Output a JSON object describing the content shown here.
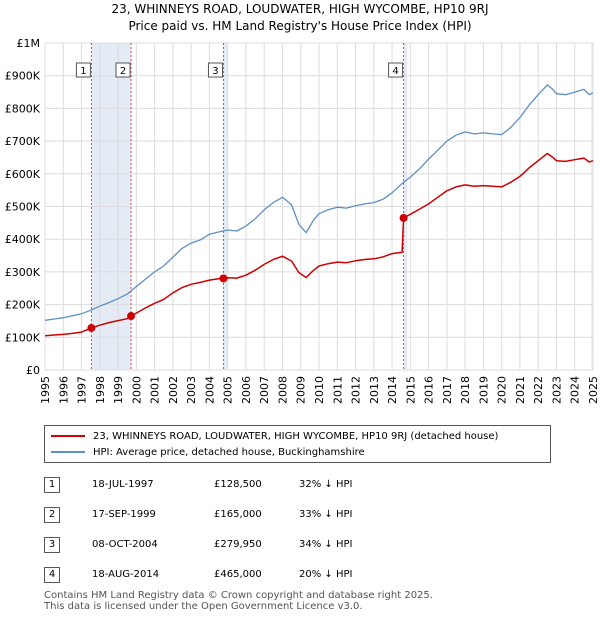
{
  "title_line1": "23, WHINNEYS ROAD, LOUDWATER, HIGH WYCOMBE, HP10 9RJ",
  "title_line2": "Price paid vs. HM Land Registry's House Price Index (HPI)",
  "colors": {
    "property": "#cc0000",
    "hpi": "#5b8fc7",
    "marker_line": "#cc0000",
    "shade": "#dde6f3"
  },
  "legend": {
    "property_label": "23, WHINNEYS ROAD, LOUDWATER, HIGH WYCOMBE, HP10 9RJ (detached house)",
    "hpi_label": "HPI: Average price, detached house, Buckinghamshire"
  },
  "sales": [
    {
      "num": "1",
      "date": "18-JUL-1997",
      "price": "£128,500",
      "hpi_diff": "32% ↓ HPI",
      "x": 1997.54,
      "y": 128500
    },
    {
      "num": "2",
      "date": "17-SEP-1999",
      "price": "£165,000",
      "hpi_diff": "33% ↓ HPI",
      "x": 1999.71,
      "y": 165000
    },
    {
      "num": "3",
      "date": "08-OCT-2004",
      "price": "£279,950",
      "hpi_diff": "34% ↓ HPI",
      "x": 2004.77,
      "y": 279950
    },
    {
      "num": "4",
      "date": "18-AUG-2014",
      "price": "£465,000",
      "hpi_diff": "20% ↓ HPI",
      "x": 2014.63,
      "y": 465000
    }
  ],
  "footer": {
    "line1": "Contains HM Land Registry data © Crown copyright and database right 2025.",
    "line2": "This data is licensed under the Open Government Licence v3.0."
  },
  "chart_data": {
    "type": "line",
    "title": "23, WHINNEYS ROAD, LOUDWATER, HIGH WYCOMBE, HP10 9RJ",
    "subtitle": "Price paid vs. HM Land Registry's House Price Index (HPI)",
    "xlim": [
      1995,
      2025
    ],
    "ylim": [
      0,
      1000000
    ],
    "grid": true,
    "legend_position": "bottom",
    "x_ticks": [
      "1995",
      "1996",
      "1997",
      "1998",
      "1999",
      "2000",
      "2001",
      "2002",
      "2003",
      "2004",
      "2005",
      "2006",
      "2007",
      "2008",
      "2009",
      "2010",
      "2011",
      "2012",
      "2013",
      "2014",
      "2015",
      "2016",
      "2017",
      "2018",
      "2019",
      "2020",
      "2021",
      "2022",
      "2023",
      "2024",
      "2025"
    ],
    "y_ticks": [
      {
        "value": 0,
        "label": "£0"
      },
      {
        "value": 100000,
        "label": "£100K"
      },
      {
        "value": 200000,
        "label": "£200K"
      },
      {
        "value": 300000,
        "label": "£300K"
      },
      {
        "value": 400000,
        "label": "£400K"
      },
      {
        "value": 500000,
        "label": "£500K"
      },
      {
        "value": 600000,
        "label": "£600K"
      },
      {
        "value": 700000,
        "label": "£700K"
      },
      {
        "value": 800000,
        "label": "£800K"
      },
      {
        "value": 900000,
        "label": "£900K"
      },
      {
        "value": 1000000,
        "label": "£1M"
      }
    ],
    "series": [
      {
        "name": "HPI: Average price, detached house, Buckinghamshire",
        "x": [
          1995.0,
          1995.5,
          1996.0,
          1996.5,
          1997.0,
          1997.5,
          1998.0,
          1998.5,
          1999.0,
          1999.5,
          2000.0,
          2000.5,
          2001.0,
          2001.5,
          2002.0,
          2002.5,
          2003.0,
          2003.5,
          2004.0,
          2004.5,
          2005.0,
          2005.5,
          2006.0,
          2006.5,
          2007.0,
          2007.5,
          2008.0,
          2008.5,
          2008.9,
          2009.3,
          2009.7,
          2010.0,
          2010.5,
          2011.0,
          2011.5,
          2012.0,
          2012.5,
          2013.0,
          2013.5,
          2014.0,
          2014.5,
          2015.0,
          2015.5,
          2016.0,
          2016.5,
          2017.0,
          2017.5,
          2018.0,
          2018.5,
          2019.0,
          2019.5,
          2020.0,
          2020.5,
          2021.0,
          2021.5,
          2022.0,
          2022.5,
          2022.8,
          2023.0,
          2023.5,
          2024.0,
          2024.5,
          2024.8,
          2025.0
        ],
        "y": [
          152000,
          156000,
          160000,
          166000,
          172000,
          183000,
          195000,
          206000,
          218000,
          232000,
          255000,
          278000,
          300000,
          318000,
          345000,
          372000,
          388000,
          398000,
          415000,
          422000,
          428000,
          425000,
          440000,
          462000,
          490000,
          512000,
          528000,
          505000,
          445000,
          420000,
          458000,
          478000,
          490000,
          498000,
          495000,
          502000,
          508000,
          512000,
          522000,
          542000,
          568000,
          590000,
          615000,
          645000,
          672000,
          700000,
          718000,
          728000,
          722000,
          725000,
          722000,
          720000,
          742000,
          772000,
          810000,
          842000,
          872000,
          858000,
          845000,
          842000,
          850000,
          858000,
          842000,
          848000
        ]
      },
      {
        "name": "23, WHINNEYS ROAD, LOUDWATER, HIGH WYCOMBE, HP10 9RJ (detached house)",
        "x": [
          1995.0,
          1995.5,
          1996.0,
          1996.5,
          1997.0,
          1997.54,
          1998.0,
          1998.5,
          1999.0,
          1999.5,
          1999.71,
          2000.0,
          2000.5,
          2001.0,
          2001.5,
          2002.0,
          2002.5,
          2003.0,
          2003.5,
          2004.0,
          2004.5,
          2004.77,
          2005.0,
          2005.5,
          2006.0,
          2006.5,
          2007.0,
          2007.5,
          2008.0,
          2008.5,
          2008.9,
          2009.3,
          2009.7,
          2010.0,
          2010.5,
          2011.0,
          2011.5,
          2012.0,
          2012.5,
          2013.0,
          2013.5,
          2014.0,
          2014.55,
          2014.63,
          2015.0,
          2015.5,
          2016.0,
          2016.5,
          2017.0,
          2017.5,
          2018.0,
          2018.5,
          2019.0,
          2019.5,
          2020.0,
          2020.5,
          2021.0,
          2021.5,
          2022.0,
          2022.5,
          2022.8,
          2023.0,
          2023.5,
          2024.0,
          2024.5,
          2024.8,
          2025.0
        ],
        "y": [
          105000,
          107000,
          109000,
          112000,
          116000,
          128500,
          137000,
          145000,
          151000,
          157000,
          165000,
          174000,
          190000,
          204000,
          216000,
          236000,
          252000,
          262000,
          268000,
          275000,
          279000,
          279950,
          282000,
          281000,
          290000,
          305000,
          323000,
          338000,
          348000,
          333000,
          298000,
          283000,
          305000,
          318000,
          325000,
          330000,
          328000,
          334000,
          338000,
          340000,
          346000,
          356000,
          360000,
          465000,
          476000,
          492000,
          508000,
          528000,
          548000,
          560000,
          566000,
          562000,
          564000,
          562000,
          560000,
          574000,
          592000,
          618000,
          640000,
          662000,
          650000,
          640000,
          638000,
          643000,
          648000,
          636000,
          640000
        ]
      }
    ]
  }
}
